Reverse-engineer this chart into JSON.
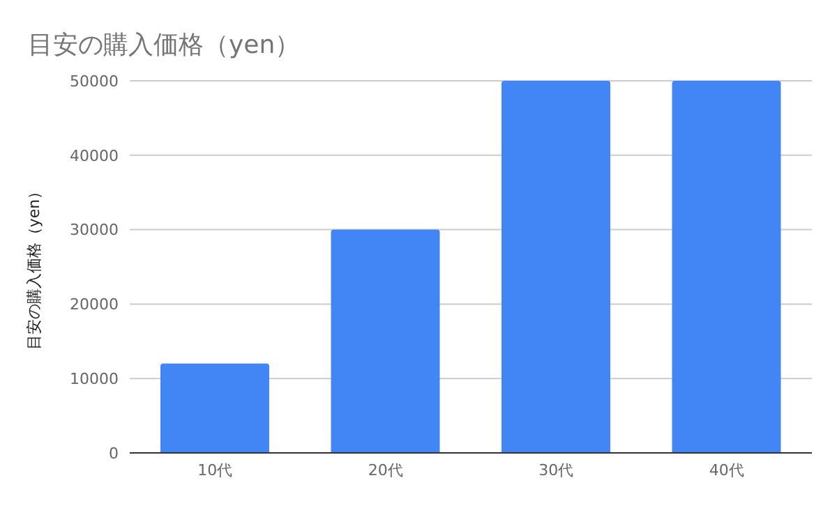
{
  "chart_data": {
    "type": "bar",
    "title": "目安の購入価格（yen）",
    "ylabel": "目安の購入価格（yen）",
    "categories": [
      "10代",
      "20代",
      "30代",
      "40代"
    ],
    "series": [
      {
        "color": "#4285f4",
        "values": [
          12000,
          30000,
          50000,
          50000
        ]
      }
    ],
    "ylim": [
      0,
      50000
    ],
    "yticks": [
      0,
      10000,
      20000,
      30000,
      40000,
      50000
    ],
    "grid": "y"
  }
}
